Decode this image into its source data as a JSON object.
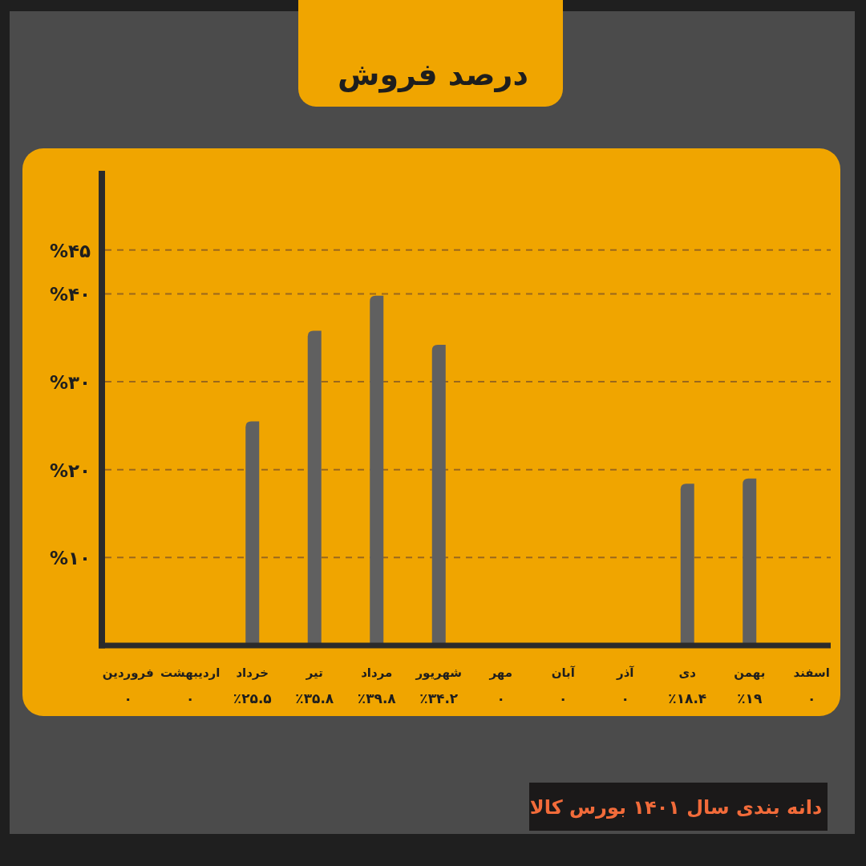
{
  "chart_data": {
    "type": "bar",
    "title": "درصد فروش",
    "categories": [
      "فروردین",
      "اردیبهشت",
      "خرداد",
      "تیر",
      "مرداد",
      "شهریور",
      "مهر",
      "آبان",
      "آذر",
      "دی",
      "بهمن",
      "اسفند"
    ],
    "values": [
      0,
      0,
      25.5,
      35.8,
      39.8,
      34.2,
      0,
      0,
      0,
      18.4,
      19,
      0
    ],
    "color": "#606060",
    "value_labels": [
      "۰",
      "۰",
      "٪۲۵.۵",
      "٪۳۵.۸",
      "٪۳۹.۸",
      "٪۳۴.۲",
      "۰",
      "۰",
      "۰",
      "٪۱۸.۴",
      "٪۱۹",
      "۰"
    ],
    "ylim": [
      0,
      54
    ],
    "yticks": [
      {
        "value": 10,
        "label": "%۱۰"
      },
      {
        "value": 20,
        "label": "%۲۰"
      },
      {
        "value": 30,
        "label": "%۳۰"
      },
      {
        "value": 40,
        "label": "%۴۰"
      },
      {
        "value": 45,
        "label": "%۴۵"
      }
    ],
    "grid": "y",
    "annotations": [
      "دانه بندی سال ۱۴۰۱ بورس کالا"
    ]
  }
}
